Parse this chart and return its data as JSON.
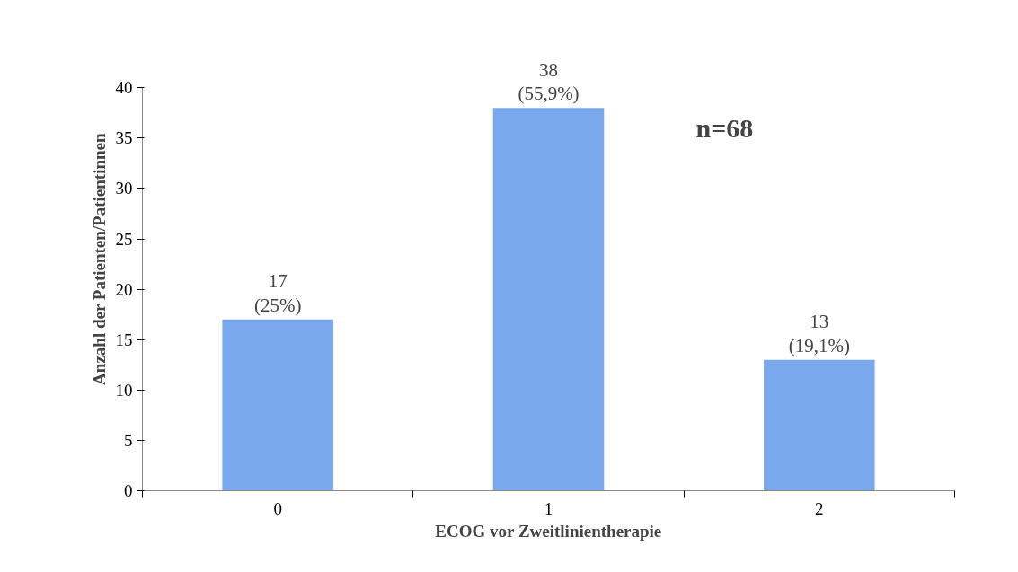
{
  "chart_data": {
    "type": "bar",
    "xlabel": "ECOG vor Zweitlinientherapie",
    "ylabel": "Anzahl der Patienten/Patientinnen",
    "categories": [
      "0",
      "1",
      "2"
    ],
    "values": [
      17,
      38,
      13
    ],
    "color": "#7aa8ec",
    "value_labels": [
      "17\n(25%)",
      "38\n(55,9%)",
      "13\n(19,1%)"
    ],
    "annotations": [
      "n=68"
    ],
    "ylim": [
      0,
      40
    ],
    "yticks": [
      0,
      5,
      10,
      15,
      20,
      25,
      30,
      35,
      40
    ],
    "grid": false
  }
}
